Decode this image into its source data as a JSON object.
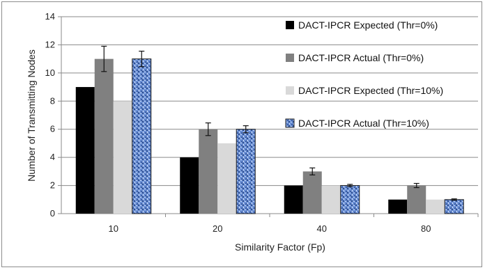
{
  "chart_data": {
    "type": "bar",
    "title": "",
    "xlabel": "Similarity Factor (Fp)",
    "ylabel": "Number of Transmitting  Nodes",
    "categories": [
      "10",
      "20",
      "40",
      "80"
    ],
    "ylim": [
      0,
      14
    ],
    "yticks": [
      0,
      2,
      4,
      6,
      8,
      10,
      12,
      14
    ],
    "grid": "horizontal",
    "legend_position": "right",
    "series": [
      {
        "name": "DACT-IPCR Expected (Thr=0%)",
        "values": [
          9,
          4,
          2,
          1
        ],
        "color": "#000000",
        "pattern": "solid"
      },
      {
        "name": "DACT-IPCR Actual (Thr=0%)",
        "values": [
          11,
          6,
          3,
          2
        ],
        "errors": [
          0.9,
          0.45,
          0.25,
          0.15
        ],
        "color": "#808080",
        "pattern": "solid"
      },
      {
        "name": "DACT-IPCR Expected (Thr=10%)",
        "values": [
          8,
          5,
          2,
          1
        ],
        "color": "#d9d9d9",
        "pattern": "solid"
      },
      {
        "name": "DACT-IPCR Actual (Thr=10%)",
        "values": [
          11,
          6,
          2,
          1
        ],
        "errors": [
          0.55,
          0.25,
          0.08,
          0.05
        ],
        "color": "#5b7fc4",
        "pattern": "textured-blue"
      }
    ]
  }
}
